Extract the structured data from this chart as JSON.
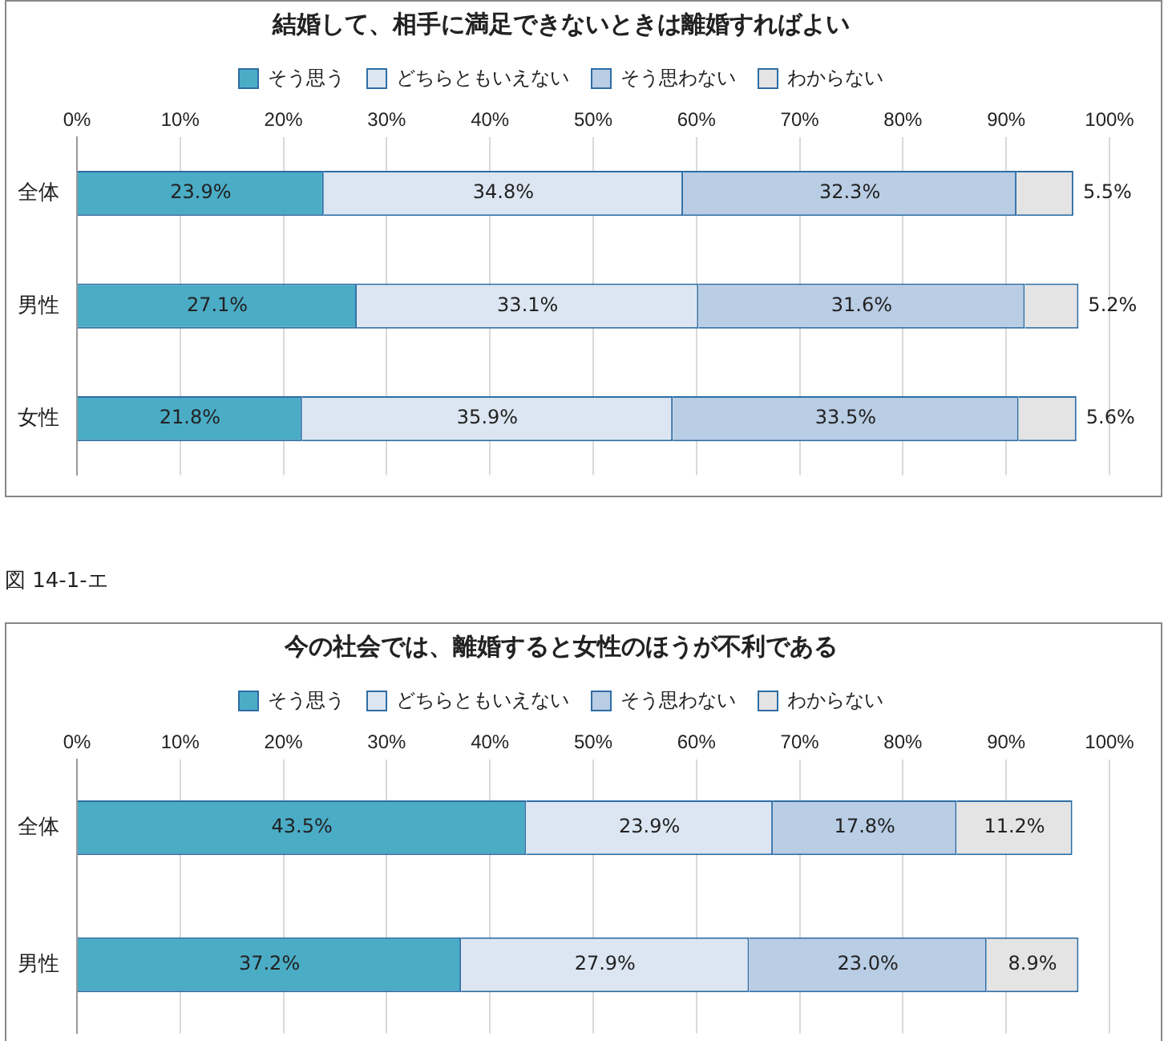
{
  "chart_data": [
    {
      "type": "bar",
      "orientation": "horizontal",
      "stacked": true,
      "title": "結婚して、相手に満足できないときは離婚すればよい",
      "categories": [
        "全体",
        "男性",
        "女性"
      ],
      "series": [
        {
          "name": "そう思う",
          "color": "#4bacc6",
          "values": [
            23.9,
            27.1,
            21.8
          ],
          "value_labels": [
            "23.9%",
            "27.1%",
            "21.8%"
          ]
        },
        {
          "name": "どちらともいえない",
          "color": "#dce6f2",
          "values": [
            34.8,
            33.1,
            35.9
          ],
          "value_labels": [
            "34.8%",
            "33.1%",
            "35.9%"
          ]
        },
        {
          "name": "そう思わない",
          "color": "#b9cde5",
          "values": [
            32.3,
            31.6,
            33.5
          ],
          "value_labels": [
            "32.3%",
            "31.6%",
            "33.5%"
          ]
        },
        {
          "name": "わからない",
          "color": "#e4e4e4",
          "values": [
            5.5,
            5.2,
            5.6
          ],
          "value_labels": [
            "5.5%",
            "5.2%",
            "5.6%"
          ]
        }
      ],
      "xlim": [
        0,
        100
      ],
      "xticks": [
        {
          "value": 0,
          "label": "0%"
        },
        {
          "value": 10,
          "label": "10%"
        },
        {
          "value": 20,
          "label": "20%"
        },
        {
          "value": 30,
          "label": "30%"
        },
        {
          "value": 40,
          "label": "40%"
        },
        {
          "value": 50,
          "label": "50%"
        },
        {
          "value": 60,
          "label": "60%"
        },
        {
          "value": 70,
          "label": "70%"
        },
        {
          "value": 80,
          "label": "80%"
        },
        {
          "value": 90,
          "label": "90%"
        },
        {
          "value": 100,
          "label": "100%"
        }
      ],
      "grid": "x",
      "legend": "top"
    },
    {
      "type": "bar",
      "orientation": "horizontal",
      "stacked": true,
      "title": "今の社会では、離婚すると女性のほうが不利である",
      "annotations": [
        "図 14-1-エ"
      ],
      "categories": [
        "全体",
        "男性"
      ],
      "series": [
        {
          "name": "そう思う",
          "color": "#4bacc6",
          "values": [
            43.5,
            37.2
          ],
          "value_labels": [
            "43.5%",
            "37.2%"
          ]
        },
        {
          "name": "どちらともいえない",
          "color": "#dce6f2",
          "values": [
            23.9,
            27.9
          ],
          "value_labels": [
            "23.9%",
            "27.9%"
          ]
        },
        {
          "name": "そう思わない",
          "color": "#b9cde5",
          "values": [
            17.8,
            23.0
          ],
          "value_labels": [
            "17.8%",
            "23.0%"
          ]
        },
        {
          "name": "わからない",
          "color": "#e4e4e4",
          "values": [
            11.2,
            8.9
          ],
          "value_labels": [
            "11.2%",
            "8.9%"
          ]
        }
      ],
      "xlim": [
        0,
        100
      ],
      "xticks": [
        {
          "value": 0,
          "label": "0%"
        },
        {
          "value": 10,
          "label": "10%"
        },
        {
          "value": 20,
          "label": "20%"
        },
        {
          "value": 30,
          "label": "30%"
        },
        {
          "value": 40,
          "label": "40%"
        },
        {
          "value": 50,
          "label": "50%"
        },
        {
          "value": 60,
          "label": "60%"
        },
        {
          "value": 70,
          "label": "70%"
        },
        {
          "value": 80,
          "label": "80%"
        },
        {
          "value": 90,
          "label": "90%"
        },
        {
          "value": 100,
          "label": "100%"
        }
      ],
      "grid": "x",
      "legend": "top"
    }
  ]
}
